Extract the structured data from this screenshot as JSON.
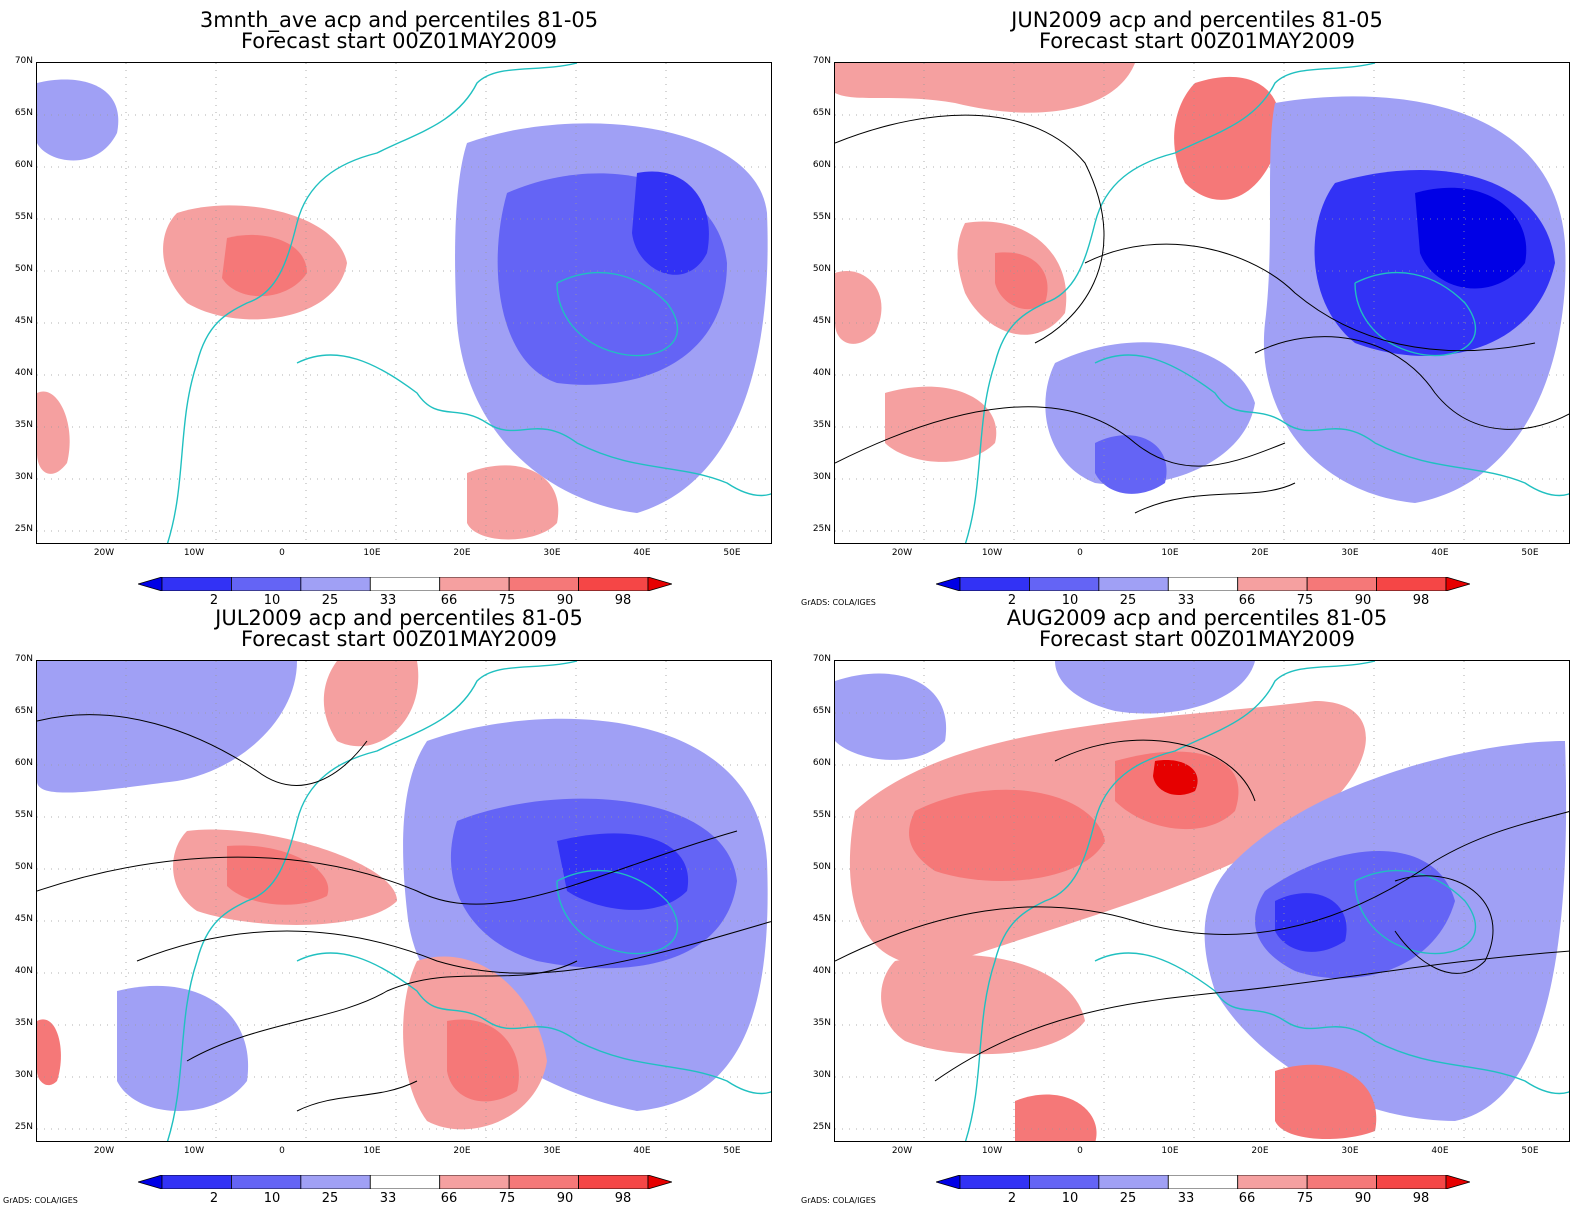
{
  "panels": [
    {
      "title": "3mnth_ave acp and percentiles 81-05",
      "subtitle": "Forecast start 00Z01MAY2009",
      "credit": ""
    },
    {
      "title": "JUN2009 acp and percentiles 81-05",
      "subtitle": "Forecast start 00Z01MAY2009",
      "credit": "GrADS: COLA/IGES"
    },
    {
      "title": "JUL2009 acp and percentiles 81-05",
      "subtitle": "Forecast start 00Z01MAY2009",
      "credit": "GrADS: COLA/IGES"
    },
    {
      "title": "AUG2009 acp and percentiles 81-05",
      "subtitle": "Forecast start 00Z01MAY2009",
      "credit": "GrADS: COLA/IGES"
    }
  ],
  "lat_labels": [
    "70N",
    "65N",
    "60N",
    "55N",
    "50N",
    "45N",
    "40N",
    "35N",
    "30N",
    "25N"
  ],
  "lon_labels": [
    "20W",
    "10W",
    "0",
    "10E",
    "20E",
    "30E",
    "40E",
    "50E"
  ],
  "colorbar": {
    "labels": [
      "2",
      "10",
      "25",
      "33",
      "66",
      "75",
      "90",
      "98"
    ],
    "colors": [
      "#0000e6",
      "#3232f5",
      "#6464f5",
      "#a0a0f5",
      "#ffffff",
      "#f5a0a0",
      "#f57878",
      "#f54646",
      "#e60000"
    ]
  },
  "colors": {
    "coastline": "#20c0c0",
    "contour": "#000000"
  }
}
